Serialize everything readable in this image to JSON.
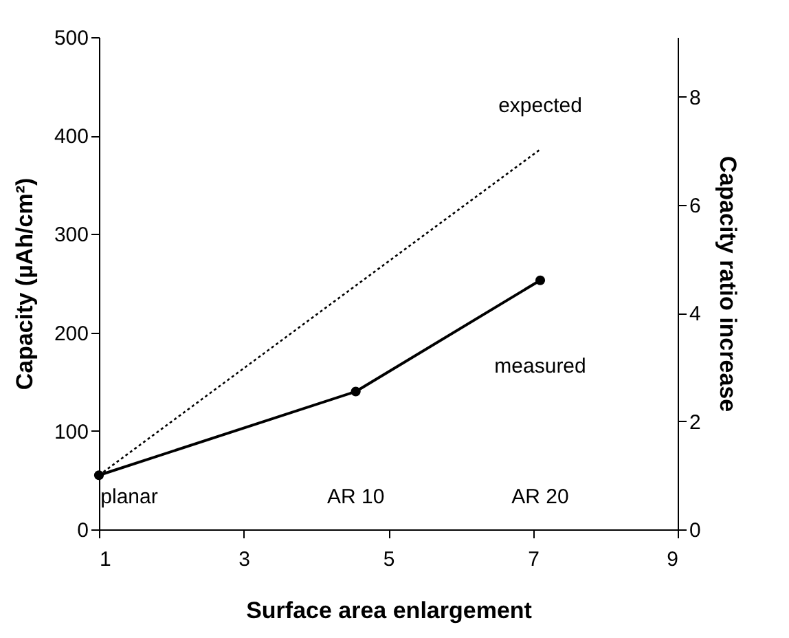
{
  "chart_data": {
    "type": "line",
    "xlabel": "Surface area enlargement",
    "ylabel": "Capacity (µAh/cm²)",
    "y2label": "Capacity ratio increase",
    "xlim": [
      1,
      9
    ],
    "xticks": [
      1,
      3,
      5,
      7,
      9
    ],
    "ylim": [
      0,
      500
    ],
    "yticks": [
      0,
      100,
      200,
      300,
      400,
      500
    ],
    "y2lim": [
      0,
      9.1
    ],
    "y2ticks": [
      0,
      2,
      4,
      6,
      8
    ],
    "grid": false,
    "series": [
      {
        "name": "measured",
        "color": "#000000",
        "x": [
          1,
          4.55,
          7.1
        ],
        "values": [
          55,
          140,
          253
        ],
        "marker": "circle",
        "line_style": "solid"
      },
      {
        "name": "expected",
        "color": "#000000",
        "x": [
          1,
          7.1
        ],
        "values": [
          55,
          386
        ],
        "marker": "none",
        "line_style": "dotted"
      }
    ],
    "annotations": [
      "planar",
      "AR 10",
      "AR 20"
    ]
  }
}
